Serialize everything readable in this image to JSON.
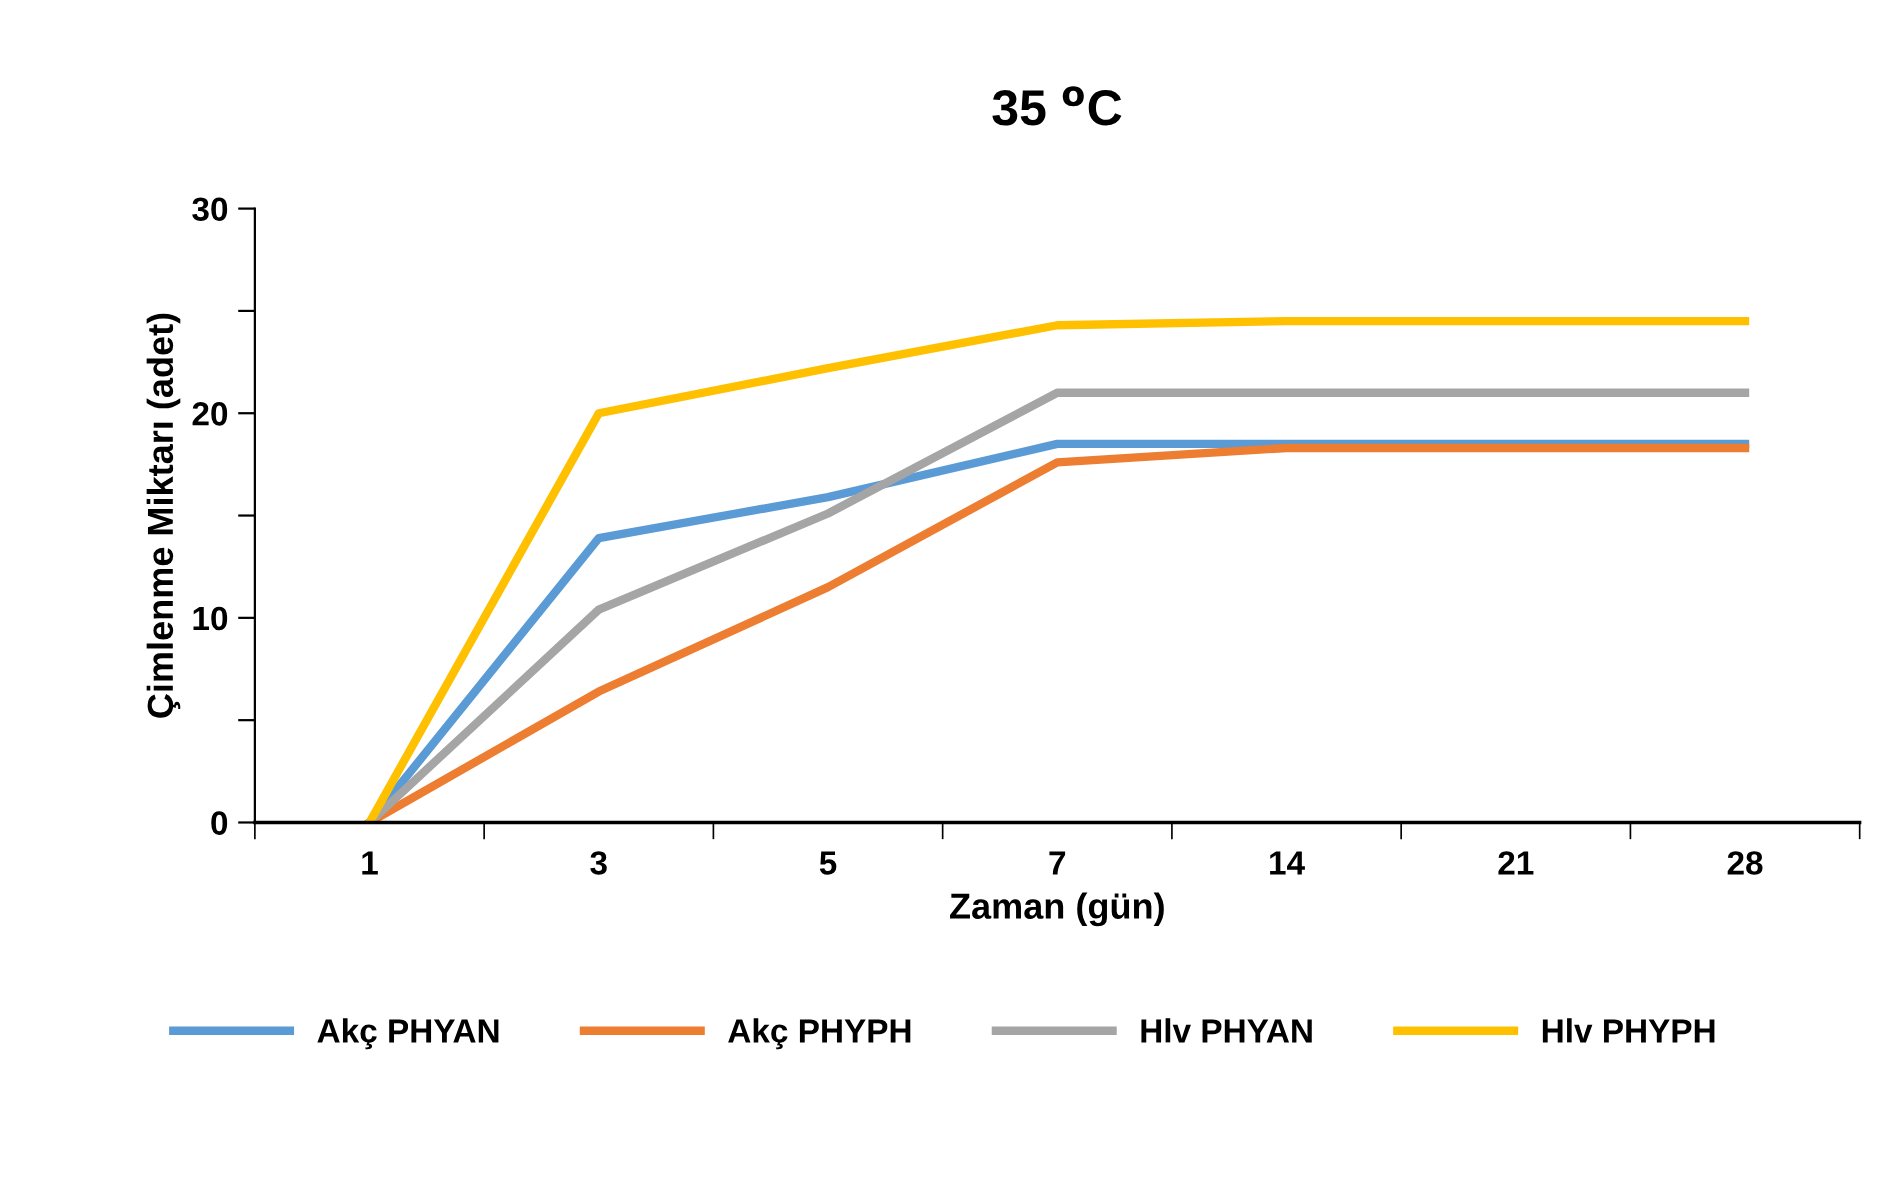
{
  "chart_data": {
    "type": "line",
    "title": "35 $^{o}$C",
    "xlabel": "Zaman (gün)",
    "ylabel": "Çimlenme Miktarı (adet)",
    "categories": [
      "1",
      "3",
      "5",
      "7",
      "14",
      "21",
      "28"
    ],
    "series": [
      {
        "name": "Akç PHYAN",
        "color": "#5b9bd5",
        "values": [
          0,
          13.9,
          15.9,
          18.5,
          18.5,
          18.5,
          18.5
        ]
      },
      {
        "name": "Akç PHYPH",
        "color": "#ed7d31",
        "values": [
          0,
          6.4,
          11.5,
          17.6,
          18.3,
          18.3,
          18.3
        ]
      },
      {
        "name": "Hlv PHYAN",
        "color": "#a5a5a5",
        "values": [
          0,
          10.4,
          15.1,
          21.0,
          21.0,
          21.0,
          21.0
        ]
      },
      {
        "name": "Hlv PHYPH",
        "color": "#ffc000",
        "values": [
          0,
          20.0,
          22.2,
          24.3,
          24.5,
          24.5,
          24.5
        ]
      }
    ],
    "ylim": [
      0,
      30
    ],
    "yticks": [
      0,
      {
        "value": 5,
        "label": null
      },
      10,
      {
        "value": 15,
        "label": null
      },
      20,
      {
        "value": 25,
        "label": null
      },
      30
    ],
    "grid": false,
    "legend": "bottom",
    "marker": "none",
    "line_style": "solid"
  }
}
